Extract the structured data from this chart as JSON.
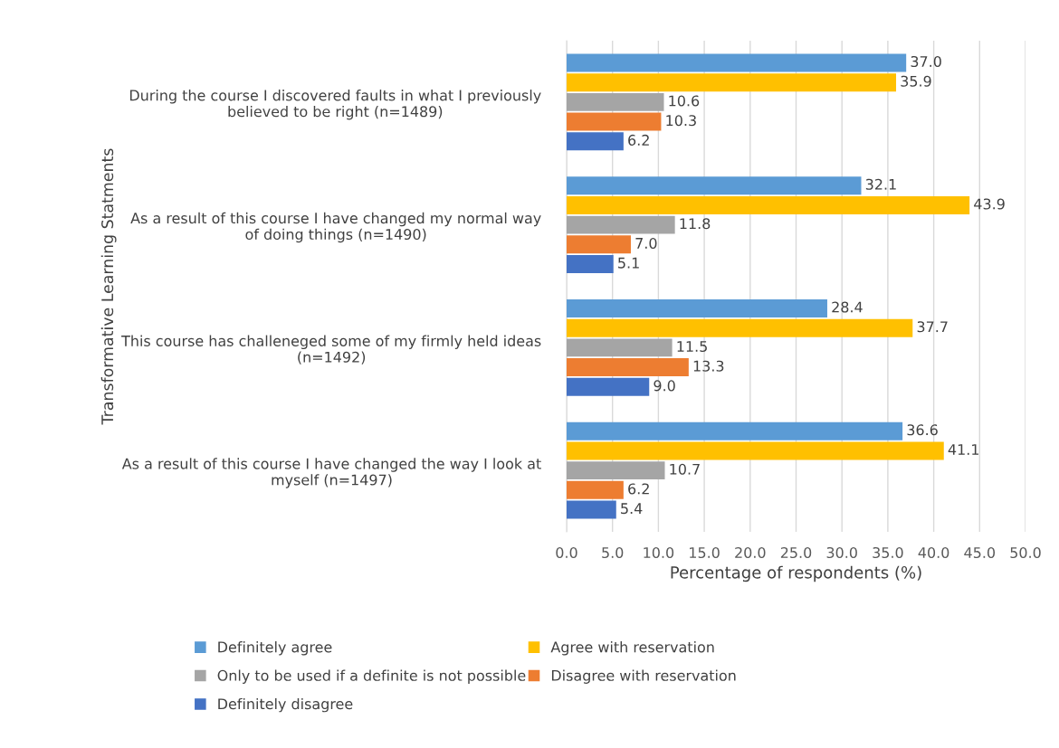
{
  "chart_data": {
    "type": "bar",
    "orientation": "horizontal",
    "categories": [
      "During the course I discovered faults in what I previously\nbelieved to be right (n=1489)",
      "As a result of this course I have changed my normal way\nof doing things (n=1490)",
      "This course has challeneged some of my firmly held ideas\n(n=1492)",
      "As a result of this course I have changed the way I look at\nmyself (n=1497)"
    ],
    "series": [
      {
        "name": "Definitely agree",
        "color": "#5b9bd5",
        "values": [
          37.0,
          32.1,
          28.4,
          36.6
        ],
        "value_labels": [
          "37.0",
          "32.1",
          "28.4",
          "36.6"
        ]
      },
      {
        "name": "Agree with reservation",
        "color": "#ffc000",
        "values": [
          35.9,
          43.9,
          37.7,
          41.1
        ],
        "value_labels": [
          "35.9",
          "43.9",
          "37.7",
          "41.1"
        ]
      },
      {
        "name": "Only to be used if a definite is not possible",
        "color": "#a5a5a5",
        "values": [
          10.6,
          11.8,
          11.5,
          10.7
        ],
        "value_labels": [
          "10.6",
          "11.8",
          "11.5",
          "10.7"
        ]
      },
      {
        "name": "Disagree with reservation",
        "color": "#ed7d31",
        "values": [
          10.3,
          7.0,
          13.3,
          6.2
        ],
        "value_labels": [
          "10.3",
          "7.0",
          "13.3",
          "6.2"
        ]
      },
      {
        "name": "Definitely disagree",
        "color": "#4472c4",
        "values": [
          6.2,
          5.1,
          9.0,
          5.4
        ],
        "value_labels": [
          "6.2",
          "5.1",
          "9.0",
          "5.4"
        ]
      }
    ],
    "xlabel": "Percentage of respondents (%)",
    "ylabel": "Transformative Learning Statments",
    "xlim": [
      0,
      50
    ],
    "xticks": [
      {
        "value": 0,
        "label": "0.0"
      },
      {
        "value": 5,
        "label": "5.0"
      },
      {
        "value": 10,
        "label": "10.0"
      },
      {
        "value": 15,
        "label": "15.0"
      },
      {
        "value": 20,
        "label": "20.0"
      },
      {
        "value": 25,
        "label": "25.0"
      },
      {
        "value": 30,
        "label": "30.0"
      },
      {
        "value": 35,
        "label": "35.0"
      },
      {
        "value": 40,
        "label": "40.0"
      },
      {
        "value": 45,
        "label": "45.0"
      },
      {
        "value": 50,
        "label": "50.0"
      }
    ],
    "grid": "x",
    "legend": "bottom"
  }
}
